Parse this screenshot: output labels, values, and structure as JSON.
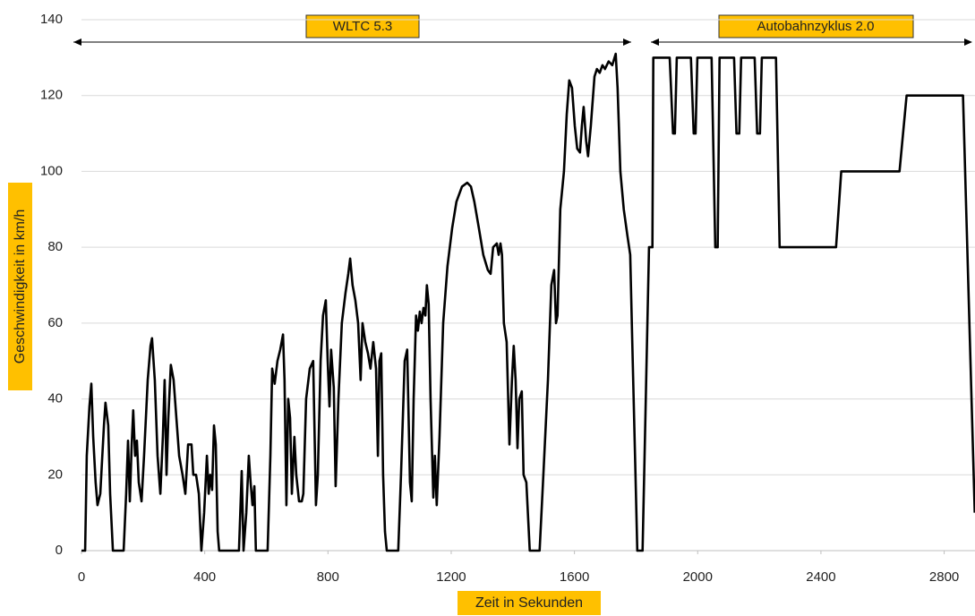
{
  "chart_data": {
    "type": "line",
    "x_label": "Zeit in Sekunden",
    "y_label": "Geschwindigkeit in km/h",
    "annotations": [
      "WLTC 5.3",
      "Autobahnzyklus 2.0"
    ],
    "color": "#000000",
    "grid": true,
    "xlim": [
      0,
      2900
    ],
    "xticks": [
      0,
      400,
      800,
      1200,
      1600,
      2000,
      2400,
      2800
    ],
    "ylim": [
      0,
      140
    ],
    "yticks": [
      0,
      20,
      40,
      60,
      80,
      100,
      120,
      140
    ],
    "x": [
      0,
      12,
      17,
      26,
      32,
      38,
      46,
      52,
      61,
      73,
      78,
      87,
      93,
      102,
      137,
      145,
      151,
      157,
      163,
      168,
      174,
      180,
      186,
      195,
      203,
      215,
      224,
      229,
      238,
      247,
      256,
      264,
      270,
      276,
      282,
      290,
      299,
      308,
      317,
      328,
      337,
      346,
      357,
      363,
      372,
      381,
      389,
      398,
      407,
      413,
      418,
      424,
      430,
      436,
      442,
      447,
      511,
      520,
      526,
      535,
      543,
      549,
      555,
      561,
      566,
      604,
      613,
      619,
      627,
      636,
      645,
      654,
      659,
      665,
      671,
      677,
      683,
      691,
      697,
      706,
      715,
      720,
      729,
      741,
      752,
      761,
      767,
      776,
      784,
      793,
      799,
      805,
      810,
      819,
      825,
      834,
      845,
      857,
      866,
      872,
      880,
      889,
      898,
      906,
      912,
      921,
      930,
      938,
      947,
      956,
      962,
      967,
      973,
      979,
      985,
      991,
      1028,
      1037,
      1049,
      1057,
      1066,
      1072,
      1078,
      1086,
      1092,
      1098,
      1104,
      1110,
      1116,
      1121,
      1127,
      1133,
      1142,
      1147,
      1153,
      1162,
      1174,
      1188,
      1203,
      1217,
      1235,
      1252,
      1264,
      1275,
      1290,
      1304,
      1319,
      1328,
      1336,
      1348,
      1354,
      1360,
      1365,
      1371,
      1380,
      1389,
      1397,
      1403,
      1409,
      1415,
      1421,
      1429,
      1435,
      1444,
      1455,
      1487,
      1499,
      1514,
      1525,
      1534,
      1540,
      1545,
      1554,
      1566,
      1575,
      1583,
      1592,
      1601,
      1609,
      1618,
      1624,
      1630,
      1638,
      1644,
      1653,
      1665,
      1673,
      1682,
      1691,
      1699,
      1711,
      1723,
      1734,
      1740,
      1749,
      1760,
      1772,
      1781,
      1789,
      1798,
      1804,
      1821,
      1842,
      1853,
      1856,
      1909,
      1920,
      1926,
      1932,
      1978,
      1987,
      1993,
      1999,
      2045,
      2057,
      2065,
      2071,
      2118,
      2126,
      2135,
      2141,
      2185,
      2193,
      2202,
      2208,
      2254,
      2266,
      2449,
      2466,
      2655,
      2678,
      2861,
      2899
    ],
    "values": [
      0,
      0,
      25,
      38,
      44,
      30,
      18,
      12,
      15,
      33,
      39,
      33,
      15,
      0,
      0,
      15,
      29,
      13,
      28,
      37,
      25,
      29,
      18,
      13,
      25,
      45,
      54,
      56,
      45,
      25,
      15,
      30,
      45,
      20,
      35,
      49,
      45,
      35,
      25,
      20,
      15,
      28,
      28,
      20,
      20,
      15,
      0,
      10,
      25,
      15,
      20,
      16,
      33,
      28,
      5,
      0,
      0,
      21,
      0,
      10,
      25,
      18,
      12,
      17,
      0,
      0,
      25,
      48,
      44,
      50,
      53,
      57,
      45,
      12,
      40,
      35,
      15,
      30,
      20,
      13,
      13,
      15,
      40,
      48,
      50,
      12,
      20,
      50,
      62,
      66,
      50,
      38,
      53,
      43,
      17,
      40,
      60,
      68,
      73,
      77,
      70,
      66,
      60,
      45,
      60,
      55,
      52,
      48,
      55,
      48,
      25,
      50,
      52,
      20,
      5,
      0,
      0,
      20,
      50,
      53,
      18,
      13,
      40,
      62,
      58,
      63,
      60,
      64,
      62,
      70,
      65,
      40,
      14,
      25,
      12,
      30,
      60,
      75,
      85,
      92,
      96,
      97,
      96,
      92,
      85,
      78,
      74,
      73,
      80,
      81,
      78,
      81,
      78,
      60,
      55,
      28,
      45,
      54,
      45,
      27,
      40,
      42,
      20,
      18,
      0,
      0,
      20,
      45,
      70,
      74,
      60,
      62,
      90,
      100,
      115,
      124,
      122,
      112,
      106,
      105,
      112,
      117,
      108,
      104,
      112,
      125,
      127,
      126,
      128,
      127,
      129,
      128,
      131,
      122,
      100,
      90,
      83,
      78,
      50,
      20,
      0,
      0,
      80,
      80,
      130,
      130,
      110,
      110,
      130,
      130,
      110,
      110,
      130,
      130,
      80,
      80,
      130,
      130,
      110,
      110,
      130,
      130,
      110,
      110,
      130,
      130,
      80,
      80,
      100,
      100,
      120,
      120,
      10
    ]
  }
}
